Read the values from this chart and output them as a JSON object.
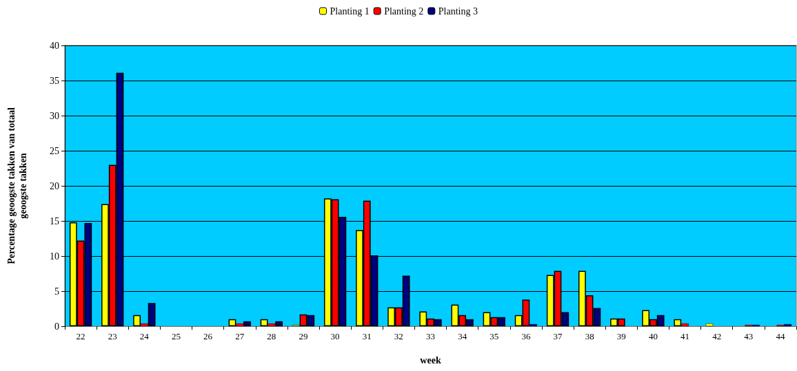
{
  "chart_data": {
    "type": "bar",
    "xlabel": "week",
    "ylabel": "Percentage geoogste takken van totaal\ngeoogste takken",
    "categories": [
      "22",
      "23",
      "24",
      "25",
      "26",
      "27",
      "28",
      "29",
      "30",
      "31",
      "32",
      "33",
      "34",
      "35",
      "36",
      "37",
      "38",
      "39",
      "40",
      "41",
      "42",
      "43",
      "44"
    ],
    "series": [
      {
        "name": "Planting 1",
        "color": "#ffff00",
        "values": [
          14.8,
          17.4,
          1.6,
          0,
          0,
          1.0,
          1.0,
          0.2,
          18.2,
          13.7,
          2.7,
          2.1,
          3.1,
          2.0,
          1.6,
          7.3,
          7.9,
          1.1,
          2.3,
          1.0,
          0.4,
          0,
          0
        ]
      },
      {
        "name": "Planting 2",
        "color": "#ff0000",
        "values": [
          12.2,
          23.0,
          0.4,
          0,
          0,
          0.4,
          0.4,
          1.7,
          18.1,
          17.9,
          2.7,
          1.1,
          1.6,
          1.3,
          3.8,
          7.9,
          4.4,
          1.1,
          1.0,
          0.4,
          0,
          0.2,
          0.2
        ]
      },
      {
        "name": "Planting 3",
        "color": "#000080",
        "values": [
          14.7,
          36.1,
          3.3,
          0,
          0,
          0.7,
          0.7,
          1.6,
          15.6,
          10.1,
          7.2,
          1.0,
          1.0,
          1.3,
          0.3,
          2.0,
          2.6,
          0,
          1.6,
          0,
          0,
          0.2,
          0.3
        ]
      }
    ],
    "ylim": [
      0,
      40
    ],
    "yticks": [
      0,
      5,
      10,
      15,
      20,
      25,
      30,
      35,
      40
    ],
    "grid": "y",
    "legend": "top"
  }
}
